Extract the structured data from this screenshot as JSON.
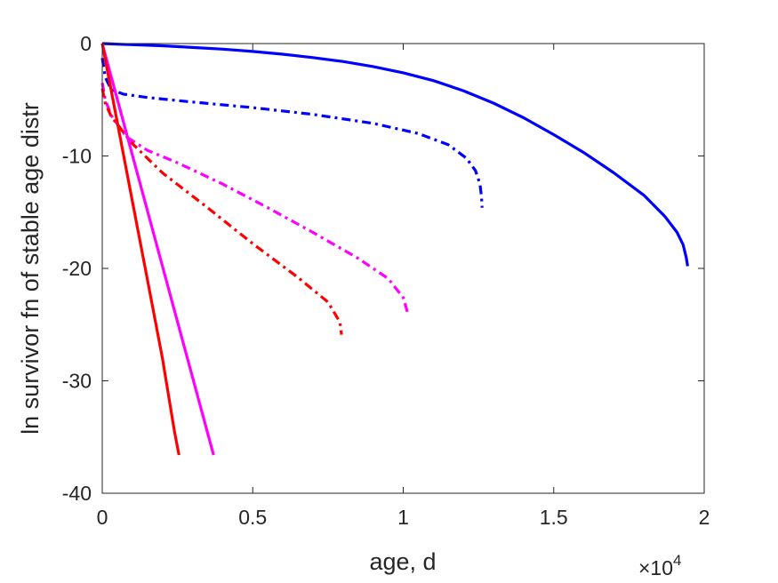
{
  "chart_data": {
    "type": "line",
    "title": "",
    "xlabel": "age, d",
    "ylabel": "ln survivor fn of stable age distr",
    "xlim": [
      0,
      20000
    ],
    "ylim": [
      -40,
      0
    ],
    "x_exponent_label": {
      "base": "×10",
      "power": "4"
    },
    "x_ticks": [
      {
        "value": 0,
        "label": "0"
      },
      {
        "value": 5000,
        "label": "0.5"
      },
      {
        "value": 10000,
        "label": "1"
      },
      {
        "value": 15000,
        "label": "1.5"
      },
      {
        "value": 20000,
        "label": "2"
      }
    ],
    "y_ticks": [
      {
        "value": 0,
        "label": "0"
      },
      {
        "value": -10,
        "label": "-10"
      },
      {
        "value": -20,
        "label": "-20"
      },
      {
        "value": -30,
        "label": "-30"
      },
      {
        "value": -40,
        "label": "-40"
      }
    ],
    "grid": false,
    "series": [
      {
        "color": "#0000ff",
        "style": "solid",
        "points": [
          [
            0,
            0
          ],
          [
            1000,
            -0.1
          ],
          [
            2000,
            -0.2
          ],
          [
            3000,
            -0.35
          ],
          [
            4000,
            -0.5
          ],
          [
            5000,
            -0.7
          ],
          [
            6000,
            -0.95
          ],
          [
            7000,
            -1.25
          ],
          [
            8000,
            -1.6
          ],
          [
            9000,
            -2.05
          ],
          [
            10000,
            -2.6
          ],
          [
            11000,
            -3.3
          ],
          [
            12000,
            -4.2
          ],
          [
            13000,
            -5.3
          ],
          [
            14000,
            -6.6
          ],
          [
            15000,
            -8.1
          ],
          [
            16000,
            -9.7
          ],
          [
            17000,
            -11.5
          ],
          [
            18000,
            -13.5
          ],
          [
            18700,
            -15.4
          ],
          [
            19100,
            -16.8
          ],
          [
            19300,
            -17.9
          ],
          [
            19400,
            -19.0
          ],
          [
            19450,
            -19.8
          ]
        ]
      },
      {
        "color": "#0000ff",
        "style": "dashdot",
        "points": [
          [
            0,
            -1.3
          ],
          [
            100,
            -3.0
          ],
          [
            300,
            -4.1
          ],
          [
            700,
            -4.5
          ],
          [
            1500,
            -4.8
          ],
          [
            3000,
            -5.2
          ],
          [
            5000,
            -5.7
          ],
          [
            7000,
            -6.3
          ],
          [
            9000,
            -7.1
          ],
          [
            10500,
            -8.0
          ],
          [
            11500,
            -9.0
          ],
          [
            12100,
            -10.2
          ],
          [
            12400,
            -11.3
          ],
          [
            12550,
            -12.5
          ],
          [
            12600,
            -13.6
          ],
          [
            12620,
            -14.6
          ]
        ]
      },
      {
        "color": "#ff00ff",
        "style": "dashdot",
        "points": [
          [
            0,
            -3.5
          ],
          [
            100,
            -5.0
          ],
          [
            300,
            -6.4
          ],
          [
            800,
            -8.3
          ],
          [
            1500,
            -9.5
          ],
          [
            2500,
            -10.6
          ],
          [
            4000,
            -12.5
          ],
          [
            5500,
            -14.6
          ],
          [
            7000,
            -16.8
          ],
          [
            8500,
            -19.1
          ],
          [
            9500,
            -20.9
          ],
          [
            10000,
            -22.6
          ],
          [
            10150,
            -24.0
          ]
        ]
      },
      {
        "color": "#ff0000",
        "style": "dashdot",
        "points": [
          [
            0,
            -4.0
          ],
          [
            100,
            -5.3
          ],
          [
            300,
            -6.5
          ],
          [
            1000,
            -8.9
          ],
          [
            2000,
            -11.5
          ],
          [
            3500,
            -14.6
          ],
          [
            5000,
            -17.8
          ],
          [
            6500,
            -20.8
          ],
          [
            7500,
            -23.0
          ],
          [
            7900,
            -24.8
          ],
          [
            7950,
            -25.9
          ]
        ]
      },
      {
        "color": "#ff00ff",
        "style": "solid",
        "points": [
          [
            0,
            0
          ],
          [
            1000,
            -9.9
          ],
          [
            2000,
            -19.8
          ],
          [
            3000,
            -29.7
          ],
          [
            3700,
            -36.6
          ]
        ]
      },
      {
        "color": "#ff0000",
        "style": "solid",
        "points": [
          [
            0,
            0
          ],
          [
            500,
            -7.0
          ],
          [
            1000,
            -14.0
          ],
          [
            1500,
            -21.0
          ],
          [
            2000,
            -28.0
          ],
          [
            2400,
            -34.5
          ],
          [
            2550,
            -36.6
          ]
        ]
      }
    ]
  }
}
